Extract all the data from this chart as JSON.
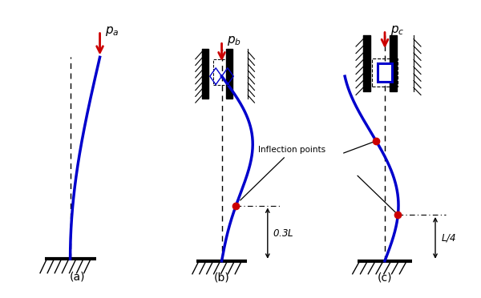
{
  "bg_color": "#ffffff",
  "blue_color": "#0000cc",
  "red_color": "#cc0000",
  "black_color": "#000000",
  "label_a": "(a)",
  "label_b": "(b)",
  "label_c": "(c)",
  "pa_label": "$p_a$",
  "pb_label": "$p_b$",
  "pc_label": "$p_c$",
  "inflection_label": "Inflection points",
  "dim_b_label": "0.3$L$",
  "dim_c_label": "$L$/4"
}
